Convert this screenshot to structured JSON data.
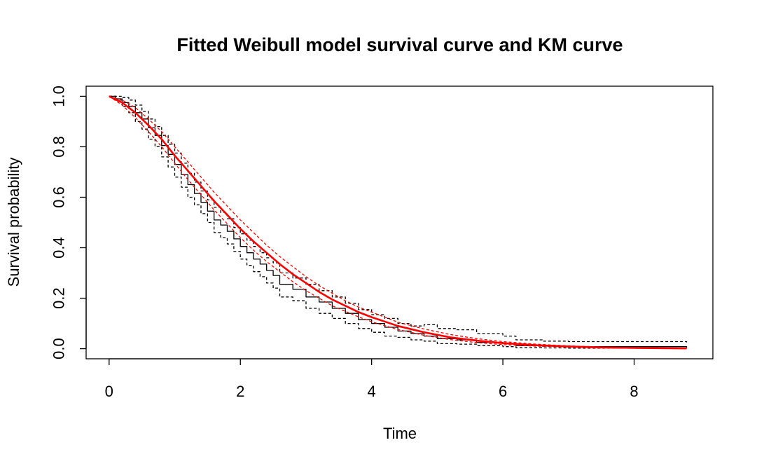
{
  "chart_data": {
    "type": "line",
    "title": "Fitted Weibull model survival curve and KM curve",
    "xlabel": "Time",
    "ylabel": "Survival probability",
    "xlim": [
      -0.35,
      9.2
    ],
    "ylim": [
      -0.04,
      1.04
    ],
    "xticks": [
      0,
      2,
      4,
      6,
      8
    ],
    "xtick_labels": [
      "0",
      "2",
      "4",
      "6",
      "8"
    ],
    "yticks": [
      0.0,
      0.2,
      0.4,
      0.6,
      0.8,
      1.0
    ],
    "ytick_labels": [
      "0.0",
      "0.2",
      "0.4",
      "0.6",
      "0.8",
      "1.0"
    ],
    "grid": false,
    "legend": "none",
    "series": [
      {
        "color": "#000000",
        "style": "solid",
        "kind": "step",
        "x": [
          0,
          0.1,
          0.2,
          0.3,
          0.4,
          0.5,
          0.6,
          0.7,
          0.8,
          0.9,
          1.0,
          1.1,
          1.2,
          1.3,
          1.4,
          1.5,
          1.6,
          1.7,
          1.8,
          1.9,
          2.0,
          2.1,
          2.2,
          2.3,
          2.4,
          2.5,
          2.6,
          2.8,
          3.0,
          3.2,
          3.4,
          3.6,
          3.8,
          4.0,
          4.2,
          4.4,
          4.6,
          4.8,
          5.0,
          5.3,
          5.6,
          6.0,
          6.2,
          6.6,
          7.0,
          8.8
        ],
        "y": [
          1.0,
          0.99,
          0.975,
          0.96,
          0.935,
          0.91,
          0.875,
          0.845,
          0.805,
          0.77,
          0.73,
          0.69,
          0.65,
          0.615,
          0.58,
          0.545,
          0.51,
          0.49,
          0.465,
          0.435,
          0.405,
          0.38,
          0.355,
          0.335,
          0.31,
          0.29,
          0.255,
          0.235,
          0.205,
          0.185,
          0.16,
          0.14,
          0.115,
          0.1,
          0.085,
          0.07,
          0.06,
          0.05,
          0.04,
          0.035,
          0.025,
          0.02,
          0.012,
          0.01,
          0.008,
          0.005
        ]
      },
      {
        "color": "#000000",
        "style": "dashed",
        "kind": "step",
        "x": [
          0,
          0.1,
          0.2,
          0.3,
          0.4,
          0.5,
          0.6,
          0.7,
          0.8,
          0.9,
          1.0,
          1.1,
          1.2,
          1.3,
          1.4,
          1.5,
          1.6,
          1.7,
          1.8,
          1.9,
          2.0,
          2.1,
          2.2,
          2.3,
          2.4,
          2.5,
          2.6,
          2.8,
          3.0,
          3.2,
          3.4,
          3.6,
          3.8,
          4.0,
          4.2,
          4.4,
          4.6,
          4.8,
          5.0,
          5.3,
          5.6,
          6.0,
          6.2,
          6.6,
          7.0,
          8.8
        ],
        "y": [
          1.0,
          1.0,
          0.995,
          0.985,
          0.965,
          0.94,
          0.91,
          0.88,
          0.845,
          0.81,
          0.775,
          0.735,
          0.695,
          0.66,
          0.625,
          0.59,
          0.56,
          0.54,
          0.515,
          0.48,
          0.455,
          0.43,
          0.405,
          0.38,
          0.36,
          0.34,
          0.3,
          0.28,
          0.255,
          0.23,
          0.205,
          0.18,
          0.155,
          0.135,
          0.12,
          0.1,
          0.09,
          0.095,
          0.08,
          0.075,
          0.06,
          0.05,
          0.035,
          0.03,
          0.028,
          0.025
        ]
      },
      {
        "color": "#000000",
        "style": "dashed",
        "kind": "step",
        "x": [
          0,
          0.1,
          0.2,
          0.3,
          0.4,
          0.5,
          0.6,
          0.7,
          0.8,
          0.9,
          1.0,
          1.1,
          1.2,
          1.3,
          1.4,
          1.5,
          1.6,
          1.7,
          1.8,
          1.9,
          2.0,
          2.1,
          2.2,
          2.3,
          2.4,
          2.5,
          2.6,
          2.8,
          3.0,
          3.2,
          3.4,
          3.6,
          3.8,
          4.0,
          4.2,
          4.4,
          4.6,
          4.8,
          5.0,
          5.3,
          5.6,
          6.0,
          6.2,
          6.6,
          7.0,
          8.8
        ],
        "y": [
          1.0,
          0.985,
          0.96,
          0.935,
          0.9,
          0.87,
          0.83,
          0.8,
          0.76,
          0.72,
          0.68,
          0.64,
          0.6,
          0.57,
          0.535,
          0.5,
          0.46,
          0.44,
          0.415,
          0.385,
          0.355,
          0.33,
          0.305,
          0.285,
          0.26,
          0.24,
          0.205,
          0.19,
          0.16,
          0.14,
          0.12,
          0.1,
          0.08,
          0.065,
          0.05,
          0.045,
          0.035,
          0.03,
          0.02,
          0.018,
          0.012,
          0.008,
          0.004,
          0.003,
          0.002,
          0.001
        ]
      },
      {
        "color": "#ff0000",
        "style": "solid",
        "kind": "smooth",
        "width": 2.6,
        "x": [
          0,
          0.2,
          0.4,
          0.6,
          0.8,
          1.0,
          1.2,
          1.4,
          1.6,
          1.8,
          2.0,
          2.2,
          2.4,
          2.6,
          2.8,
          3.0,
          3.2,
          3.4,
          3.6,
          3.8,
          4.0,
          4.4,
          4.8,
          5.2,
          5.6,
          6.0,
          6.5,
          7.0,
          7.5,
          8.0,
          8.8
        ],
        "y": [
          1.0,
          0.975,
          0.935,
          0.885,
          0.83,
          0.765,
          0.705,
          0.645,
          0.585,
          0.53,
          0.475,
          0.425,
          0.38,
          0.335,
          0.295,
          0.26,
          0.225,
          0.195,
          0.17,
          0.145,
          0.125,
          0.09,
          0.065,
          0.045,
          0.032,
          0.022,
          0.014,
          0.009,
          0.005,
          0.003,
          0.001
        ]
      },
      {
        "color": "#ff0000",
        "style": "dashed",
        "kind": "smooth",
        "width": 1.3,
        "x": [
          0,
          0.2,
          0.4,
          0.6,
          0.8,
          1.0,
          1.2,
          1.4,
          1.6,
          1.8,
          2.0,
          2.2,
          2.4,
          2.6,
          2.8,
          3.0,
          3.2,
          3.4,
          3.6,
          3.8,
          4.0,
          4.4,
          4.8,
          5.2,
          5.6,
          6.0,
          6.5,
          7.0,
          7.5,
          8.0,
          8.8
        ],
        "y": [
          1.0,
          0.985,
          0.955,
          0.91,
          0.86,
          0.8,
          0.74,
          0.68,
          0.62,
          0.565,
          0.51,
          0.46,
          0.41,
          0.365,
          0.325,
          0.285,
          0.25,
          0.22,
          0.19,
          0.165,
          0.145,
          0.105,
          0.078,
          0.056,
          0.04,
          0.028,
          0.018,
          0.011,
          0.007,
          0.004,
          0.002
        ]
      },
      {
        "color": "#ff0000",
        "style": "dashed",
        "kind": "smooth",
        "width": 1.3,
        "x": [
          0,
          0.2,
          0.4,
          0.6,
          0.8,
          1.0,
          1.2,
          1.4,
          1.6,
          1.8,
          2.0,
          2.2,
          2.4,
          2.6,
          2.8,
          3.0,
          3.2,
          3.4,
          3.6,
          3.8,
          4.0,
          4.4,
          4.8,
          5.2,
          5.6,
          6.0,
          6.5,
          7.0,
          7.5,
          8.0,
          8.8
        ],
        "y": [
          1.0,
          0.965,
          0.915,
          0.86,
          0.8,
          0.735,
          0.67,
          0.61,
          0.55,
          0.495,
          0.44,
          0.39,
          0.345,
          0.305,
          0.265,
          0.23,
          0.2,
          0.17,
          0.148,
          0.126,
          0.107,
          0.076,
          0.053,
          0.036,
          0.024,
          0.016,
          0.01,
          0.006,
          0.003,
          0.002,
          0.0005
        ]
      }
    ]
  }
}
